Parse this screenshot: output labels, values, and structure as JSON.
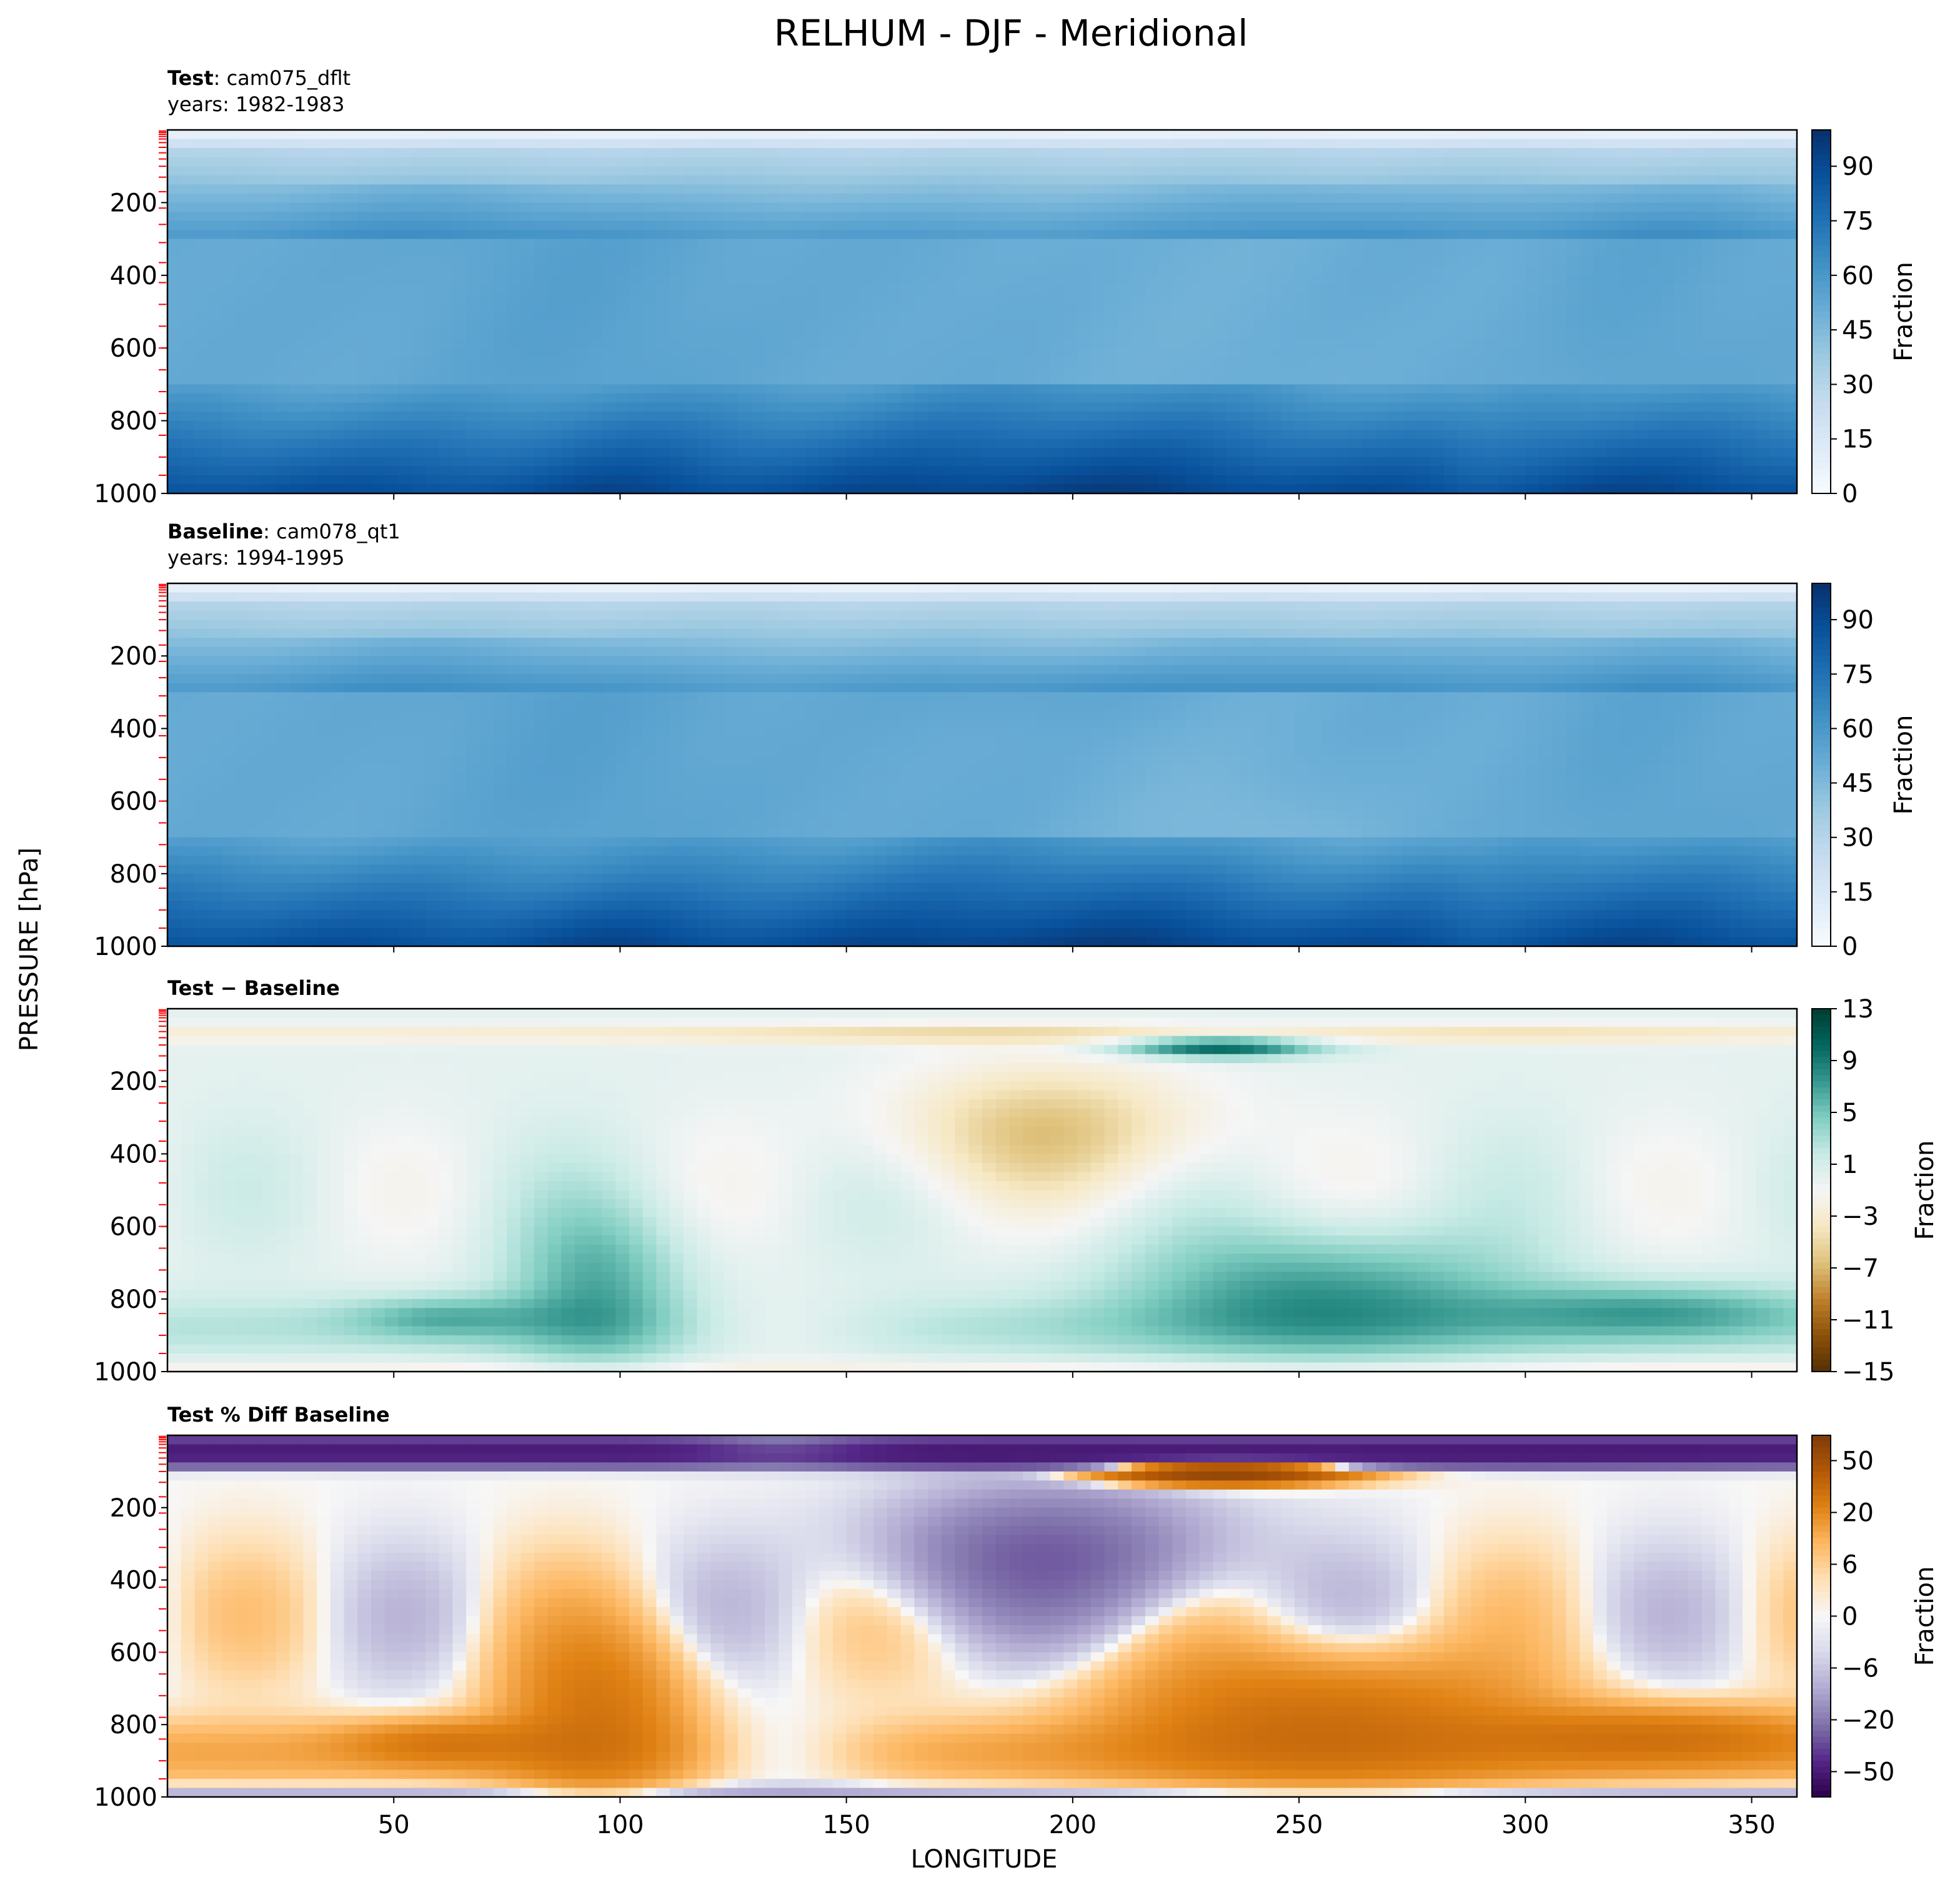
{
  "figure": {
    "title": "RELHUM - DJF - Meridional",
    "ylabel": "PRESSURE [hPa]",
    "xlabel": "LONGITUDE"
  },
  "chart_data": [
    {
      "type": "heatmap",
      "title_bold": "Test",
      "title_rest": ": cam075_dflt",
      "subtitle": "years: 1982-1983",
      "x_ticks": [],
      "y_ticks": [
        200,
        400,
        600,
        800,
        1000
      ],
      "xlim": [
        0,
        360
      ],
      "ylim": [
        1000,
        0
      ],
      "colorbar": {
        "label": "Fraction",
        "ticks": [
          "0",
          "15",
          "30",
          "45",
          "60",
          "75",
          "90"
        ],
        "range": [
          0,
          100
        ],
        "colormap": "Blues"
      },
      "field": "test"
    },
    {
      "type": "heatmap",
      "title_bold": "Baseline",
      "title_rest": ": cam078_qt1",
      "subtitle": "years: 1994-1995",
      "x_ticks": [],
      "y_ticks": [
        200,
        400,
        600,
        800,
        1000
      ],
      "xlim": [
        0,
        360
      ],
      "ylim": [
        1000,
        0
      ],
      "colorbar": {
        "label": "Fraction",
        "ticks": [
          "0",
          "15",
          "30",
          "45",
          "60",
          "75",
          "90"
        ],
        "range": [
          0,
          100
        ],
        "colormap": "Blues"
      },
      "field": "baseline"
    },
    {
      "type": "heatmap",
      "title_bold": "Test − Baseline",
      "title_rest": "",
      "subtitle": "",
      "x_ticks": [],
      "y_ticks": [
        200,
        400,
        600,
        800,
        1000
      ],
      "xlim": [
        0,
        360
      ],
      "ylim": [
        1000,
        0
      ],
      "colorbar": {
        "label": "Fraction",
        "ticks": [
          "−15",
          "−11",
          "−7",
          "−3",
          "1",
          "5",
          "9",
          "13"
        ],
        "range": [
          -15,
          13
        ],
        "colormap": "BrBG"
      },
      "field": "diff"
    },
    {
      "type": "heatmap",
      "title_bold": "Test % Diff Baseline",
      "title_rest": "",
      "subtitle": "",
      "x_ticks": [
        50,
        100,
        150,
        200,
        250,
        300,
        350
      ],
      "y_ticks": [
        200,
        400,
        600,
        800,
        1000
      ],
      "xlim": [
        0,
        360
      ],
      "ylim": [
        1000,
        0
      ],
      "colorbar": {
        "label": "Fraction",
        "ticks": [
          "−50",
          "−20",
          "−6",
          "0",
          "6",
          "20",
          "50"
        ],
        "colormap": "PuOr"
      },
      "field": "pctdiff"
    }
  ]
}
